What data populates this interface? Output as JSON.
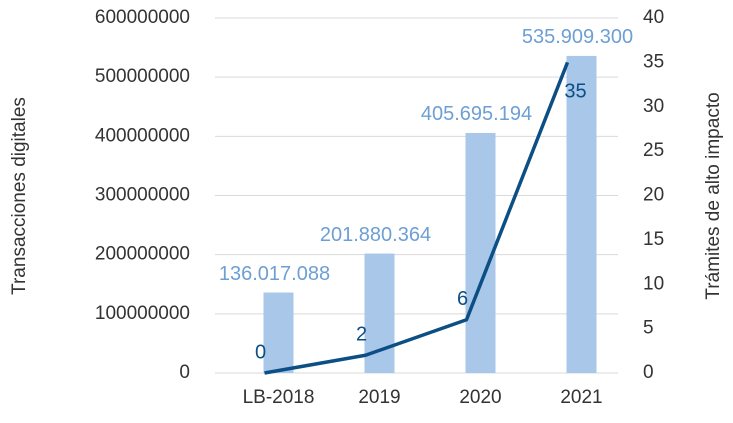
{
  "chart_data": {
    "type": "bar_line",
    "categories": [
      "LB-2018",
      "2019",
      "2020",
      "2021"
    ],
    "series": [
      {
        "name": "Transacciones digitales",
        "type": "bar",
        "color": "#a9c7e9",
        "values": [
          136017088,
          201880364,
          405695194,
          535909300
        ],
        "value_labels": [
          "136.017.088",
          "201.880.364",
          "405.695.194",
          "535.909.300"
        ]
      },
      {
        "name": "Trámites de alto impacto",
        "type": "line",
        "axis": "y2",
        "color": "#0b4f84",
        "values": [
          0,
          2,
          6,
          35
        ]
      }
    ],
    "ylabel": "Transacciones digitales",
    "y2label": "Trámites de alto impacto",
    "ylim": [
      0,
      600000000
    ],
    "yticks": [
      0,
      100000000,
      200000000,
      300000000,
      400000000,
      500000000,
      600000000
    ],
    "y2lim": [
      0,
      40
    ],
    "y2ticks": [
      0,
      5,
      10,
      15,
      20,
      25,
      30,
      35,
      40
    ],
    "grid": true
  }
}
